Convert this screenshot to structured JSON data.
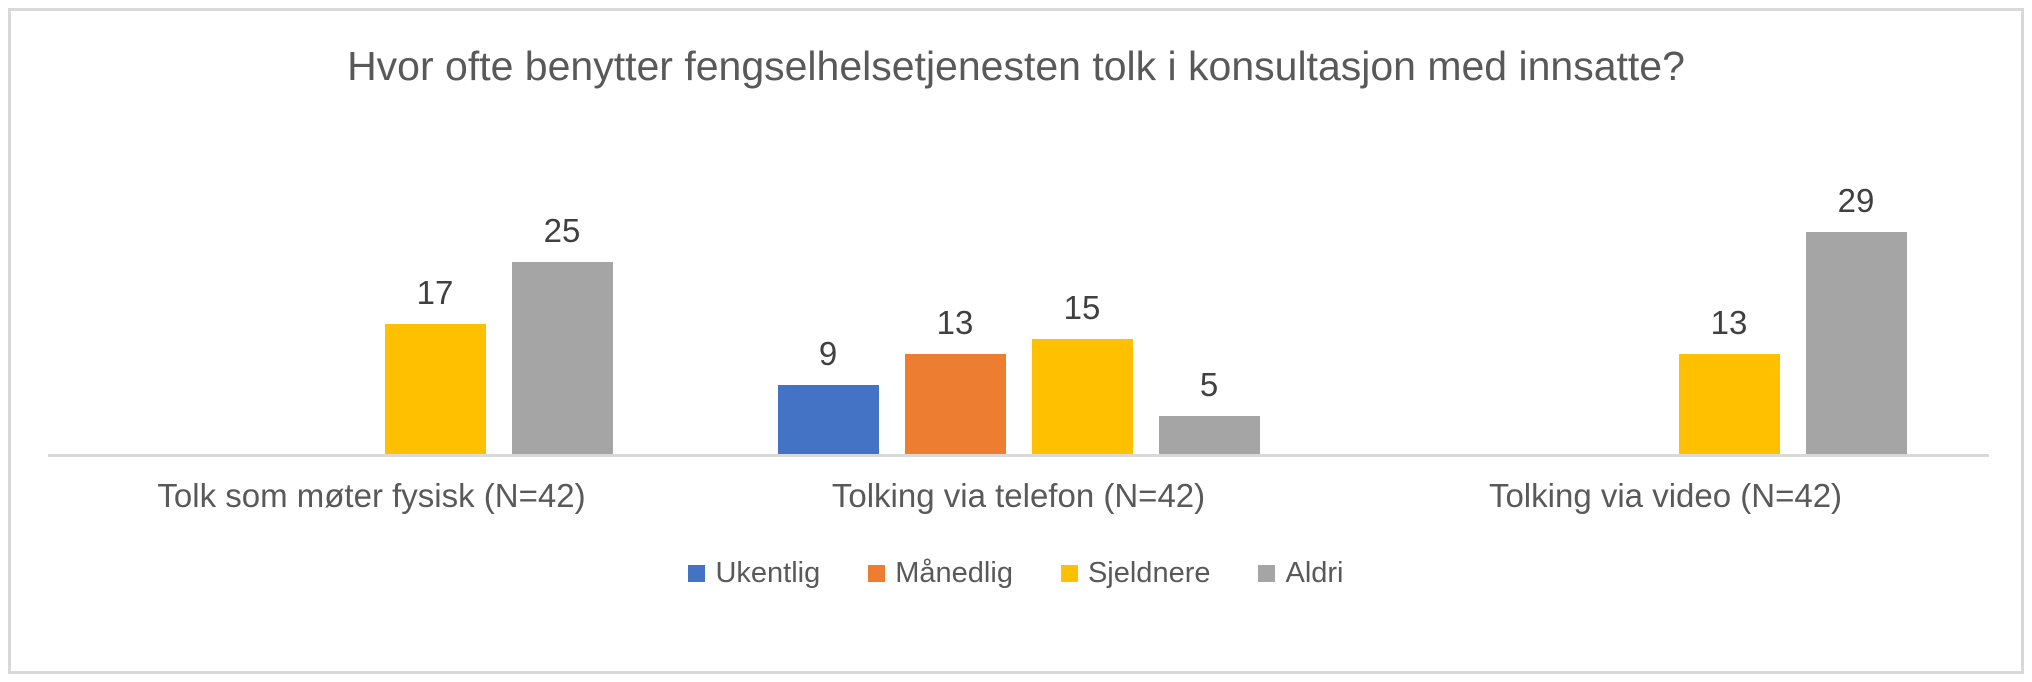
{
  "chart": {
    "title": "Hvor ofte benytter fengselhelsetjenesten tolk i konsultasjon med innsatte?"
  },
  "chart_data": {
    "type": "bar",
    "title": "Hvor ofte benytter fengselhelsetjenesten tolk i konsultasjon med innsatte?",
    "categories": [
      "Tolk som møter fysisk (N=42)",
      "Tolking via telefon (N=42)",
      "Tolking via video (N=42)"
    ],
    "series": [
      {
        "name": "Ukentlig",
        "color": "#4472C4",
        "values": [
          0,
          9,
          0
        ]
      },
      {
        "name": "Månedlig",
        "color": "#ED7D31",
        "values": [
          0,
          13,
          0
        ]
      },
      {
        "name": "Sjeldnere",
        "color": "#FFC000",
        "values": [
          17,
          15,
          13
        ]
      },
      {
        "name": "Aldri",
        "color": "#A5A5A5",
        "values": [
          25,
          5,
          29
        ]
      }
    ],
    "data_labels": true,
    "xlabel": "",
    "ylabel": "",
    "ylim": [
      0,
      30
    ],
    "grid": false,
    "legend_position": "bottom",
    "axis_line_color": "#D9D9D9",
    "hidden_zero_bars": true
  }
}
